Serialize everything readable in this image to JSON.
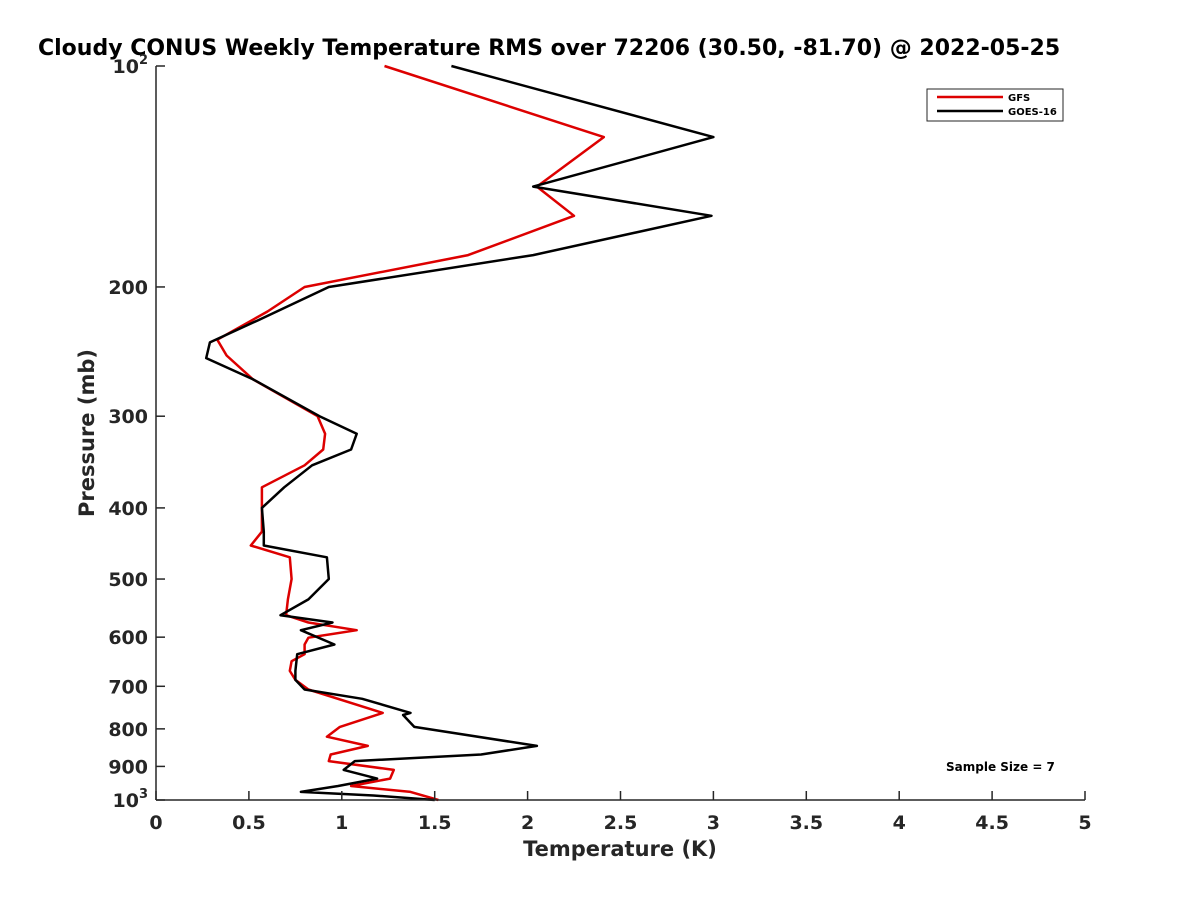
{
  "chart_data": {
    "type": "line",
    "title": "Cloudy CONUS Weekly Temperature RMS over 72206 (30.50, -81.70) @ 2022-05-25",
    "xlabel": "Temperature (K)",
    "ylabel": "Pressure (mb)",
    "xlim": [
      0,
      5
    ],
    "ylim": [
      1000,
      100
    ],
    "y_scale": "log",
    "y_reversed": true,
    "x_ticks": [
      {
        "value": 0,
        "label": "0"
      },
      {
        "value": 0.5,
        "label": "0.5"
      },
      {
        "value": 1,
        "label": "1"
      },
      {
        "value": 1.5,
        "label": "1.5"
      },
      {
        "value": 2,
        "label": "2"
      },
      {
        "value": 2.5,
        "label": "2.5"
      },
      {
        "value": 3,
        "label": "3"
      },
      {
        "value": 3.5,
        "label": "3.5"
      },
      {
        "value": 4,
        "label": "4"
      },
      {
        "value": 4.5,
        "label": "4.5"
      },
      {
        "value": 5,
        "label": "5"
      }
    ],
    "y_ticks": [
      {
        "value": 100,
        "base": "10",
        "exp": "2"
      },
      {
        "value": 200,
        "base": "200",
        "exp": ""
      },
      {
        "value": 300,
        "base": "300",
        "exp": ""
      },
      {
        "value": 400,
        "base": "400",
        "exp": ""
      },
      {
        "value": 500,
        "base": "500",
        "exp": ""
      },
      {
        "value": 600,
        "base": "600",
        "exp": ""
      },
      {
        "value": 700,
        "base": "700",
        "exp": ""
      },
      {
        "value": 800,
        "base": "800",
        "exp": ""
      },
      {
        "value": 900,
        "base": "900",
        "exp": ""
      },
      {
        "value": 1000,
        "base": "10",
        "exp": "3"
      }
    ],
    "grid": false,
    "legend_position": "top-right",
    "annotation": "Sample Size = 7",
    "series": [
      {
        "name": "GFS",
        "color": "#dd0000",
        "points": [
          [
            1.23,
            100
          ],
          [
            2.41,
            125
          ],
          [
            2.05,
            146
          ],
          [
            2.25,
            160
          ],
          [
            1.68,
            181
          ],
          [
            0.8,
            200
          ],
          [
            0.6,
            216
          ],
          [
            0.33,
            236
          ],
          [
            0.38,
            248
          ],
          [
            0.52,
            267
          ],
          [
            0.87,
            300
          ],
          [
            0.91,
            317
          ],
          [
            0.9,
            333
          ],
          [
            0.8,
            350
          ],
          [
            0.57,
            375
          ],
          [
            0.57,
            400
          ],
          [
            0.57,
            431
          ],
          [
            0.51,
            450
          ],
          [
            0.72,
            467
          ],
          [
            0.73,
            500
          ],
          [
            0.71,
            533
          ],
          [
            0.7,
            560
          ],
          [
            0.82,
            573
          ],
          [
            1.08,
            587
          ],
          [
            0.82,
            601
          ],
          [
            0.8,
            614
          ],
          [
            0.8,
            633
          ],
          [
            0.73,
            647
          ],
          [
            0.72,
            667
          ],
          [
            0.75,
            686
          ],
          [
            0.82,
            707
          ],
          [
            1.22,
            761
          ],
          [
            0.99,
            795
          ],
          [
            0.92,
            820
          ],
          [
            1.14,
            844
          ],
          [
            0.94,
            867
          ],
          [
            0.93,
            885
          ],
          [
            1.28,
            910
          ],
          [
            1.26,
            935
          ],
          [
            1.05,
            957
          ],
          [
            1.37,
            975
          ],
          [
            1.52,
            1000
          ]
        ]
      },
      {
        "name": "GOES-16",
        "color": "#000000",
        "points": [
          [
            1.59,
            100
          ],
          [
            3.0,
            125
          ],
          [
            2.03,
            146
          ],
          [
            2.99,
            160
          ],
          [
            2.03,
            181
          ],
          [
            0.93,
            200
          ],
          [
            0.55,
            222
          ],
          [
            0.29,
            238
          ],
          [
            0.27,
            250
          ],
          [
            0.52,
            267
          ],
          [
            0.88,
            300
          ],
          [
            1.08,
            317
          ],
          [
            1.05,
            333
          ],
          [
            0.84,
            350
          ],
          [
            0.69,
            375
          ],
          [
            0.57,
            400
          ],
          [
            0.58,
            431
          ],
          [
            0.58,
            450
          ],
          [
            0.92,
            467
          ],
          [
            0.93,
            500
          ],
          [
            0.82,
            533
          ],
          [
            0.67,
            560
          ],
          [
            0.95,
            573
          ],
          [
            0.78,
            587
          ],
          [
            0.96,
            614
          ],
          [
            0.76,
            633
          ],
          [
            0.75,
            667
          ],
          [
            0.75,
            686
          ],
          [
            0.8,
            707
          ],
          [
            1.11,
            728
          ],
          [
            1.37,
            761
          ],
          [
            1.33,
            766
          ],
          [
            1.39,
            795
          ],
          [
            2.05,
            844
          ],
          [
            1.75,
            867
          ],
          [
            1.07,
            885
          ],
          [
            1.01,
            910
          ],
          [
            1.19,
            935
          ],
          [
            0.98,
            957
          ],
          [
            0.78,
            975
          ],
          [
            1.17,
            986
          ],
          [
            1.5,
            1000
          ]
        ]
      }
    ]
  }
}
